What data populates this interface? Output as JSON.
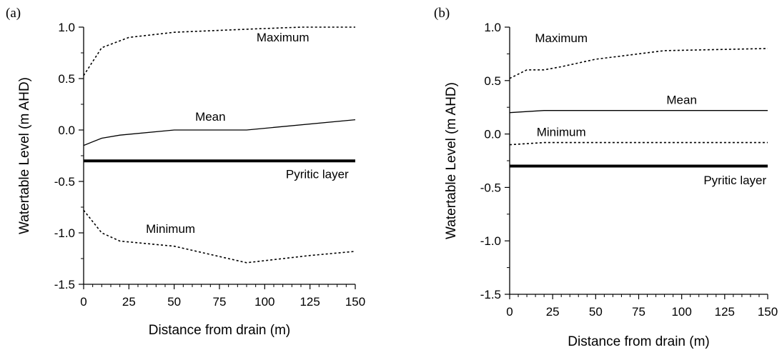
{
  "chart_data": [
    {
      "type": "line",
      "panel_label": "(a)",
      "xlabel": "Distance from drain (m)",
      "ylabel": "Watertable Level (m AHD)",
      "xlim": [
        0,
        150
      ],
      "ylim": [
        -1.5,
        1.0
      ],
      "xticks": [
        0,
        25,
        50,
        75,
        100,
        125,
        150
      ],
      "yticks": [
        -1.5,
        -1.0,
        -0.5,
        0.0,
        0.5,
        1.0
      ],
      "ytick_labels": [
        "-1.5",
        "-1.0",
        "-0.5",
        "0.0",
        "0.5",
        "1.0"
      ],
      "series": [
        {
          "name": "Maximum",
          "style": "dotted",
          "x": [
            0,
            10,
            25,
            50,
            90,
            120,
            150
          ],
          "y": [
            0.53,
            0.8,
            0.9,
            0.95,
            0.98,
            1.0,
            1.0
          ],
          "label_at": [
            110,
            0.86
          ]
        },
        {
          "name": "Mean",
          "style": "solid",
          "x": [
            0,
            10,
            20,
            50,
            90,
            150
          ],
          "y": [
            -0.15,
            -0.08,
            -0.05,
            0.0,
            0.0,
            0.1
          ],
          "label_at": [
            70,
            0.09
          ]
        },
        {
          "name": "Minimum",
          "style": "dotted",
          "x": [
            0,
            10,
            20,
            50,
            90,
            125,
            150
          ],
          "y": [
            -0.78,
            -1.0,
            -1.08,
            -1.13,
            -1.29,
            -1.22,
            -1.18
          ],
          "label_at": [
            48,
            -1.0
          ]
        }
      ],
      "reference_line": {
        "name": "Pyritic layer",
        "y": -0.3,
        "label_at": [
          129,
          -0.47
        ]
      }
    },
    {
      "type": "line",
      "panel_label": "(b)",
      "xlabel": "Distance from drain (m)",
      "ylabel": "Watertable Level (m AHD)",
      "xlim": [
        0,
        150
      ],
      "ylim": [
        -1.5,
        1.0
      ],
      "xticks": [
        0,
        25,
        50,
        75,
        100,
        125,
        150
      ],
      "yticks": [
        -1.5,
        -1.0,
        -0.5,
        0.0,
        0.5,
        1.0
      ],
      "ytick_labels": [
        "-1.5",
        "-1.0",
        "-0.5",
        "0.0",
        "0.5",
        "1.0"
      ],
      "series": [
        {
          "name": "Maximum",
          "style": "dotted",
          "x": [
            0,
            10,
            20,
            30,
            50,
            75,
            90,
            150
          ],
          "y": [
            0.52,
            0.6,
            0.6,
            0.63,
            0.7,
            0.75,
            0.78,
            0.8
          ],
          "label_at": [
            30,
            0.86
          ]
        },
        {
          "name": "Mean",
          "style": "solid",
          "x": [
            0,
            20,
            150
          ],
          "y": [
            0.2,
            0.22,
            0.22
          ],
          "label_at": [
            100,
            0.28
          ]
        },
        {
          "name": "Minimum",
          "style": "dotted",
          "x": [
            0,
            20,
            150
          ],
          "y": [
            -0.1,
            -0.08,
            -0.08
          ],
          "label_at": [
            30,
            -0.02
          ]
        }
      ],
      "reference_line": {
        "name": "Pyritic layer",
        "y": -0.3,
        "label_at": [
          131,
          -0.47
        ]
      }
    }
  ]
}
